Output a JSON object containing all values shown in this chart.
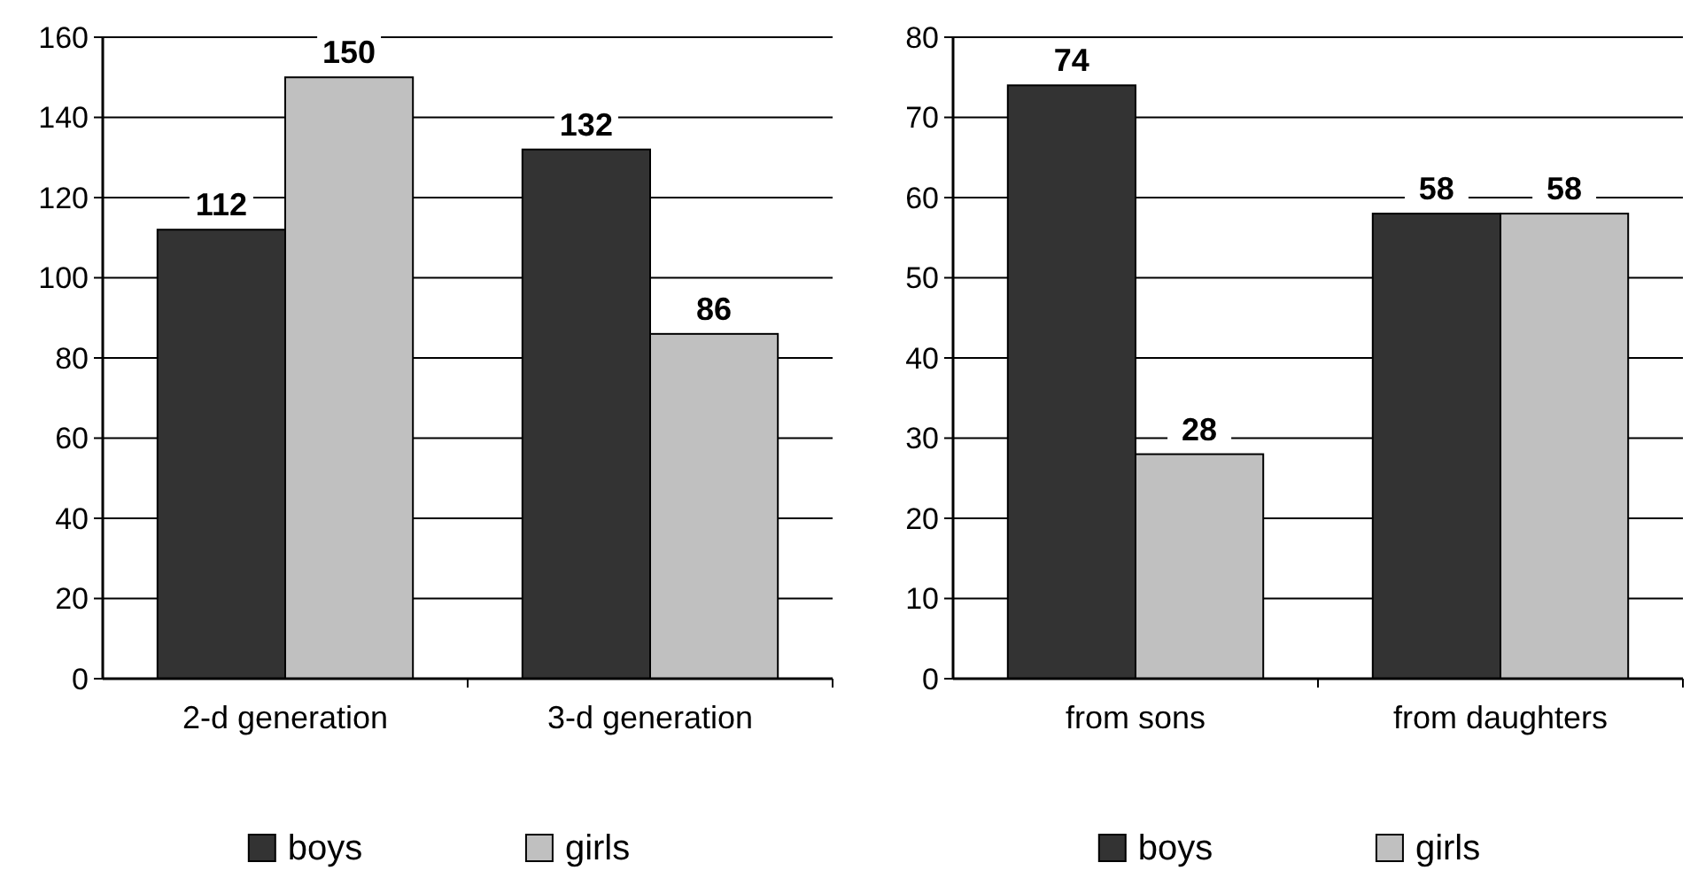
{
  "chart_data": [
    {
      "type": "bar",
      "categories": [
        "2-d generation",
        "3-d generation"
      ],
      "series": [
        {
          "name": "boys",
          "color": "#333333",
          "values": [
            112,
            132
          ]
        },
        {
          "name": "girls",
          "color": "#c0c0c0",
          "values": [
            150,
            86
          ]
        }
      ],
      "ylim": [
        0,
        160
      ],
      "yticks": [
        0,
        20,
        40,
        60,
        80,
        100,
        120,
        140,
        160
      ],
      "grid": "y",
      "legend": "bottom",
      "data_labels": true
    },
    {
      "type": "bar",
      "categories": [
        "from sons",
        "from daughters"
      ],
      "series": [
        {
          "name": "boys",
          "color": "#333333",
          "values": [
            74,
            58
          ]
        },
        {
          "name": "girls",
          "color": "#c0c0c0",
          "values": [
            28,
            58
          ]
        }
      ],
      "ylim": [
        0,
        80
      ],
      "yticks": [
        0,
        10,
        20,
        30,
        40,
        50,
        60,
        70,
        80
      ],
      "grid": "y",
      "legend": "bottom",
      "data_labels": true
    }
  ]
}
